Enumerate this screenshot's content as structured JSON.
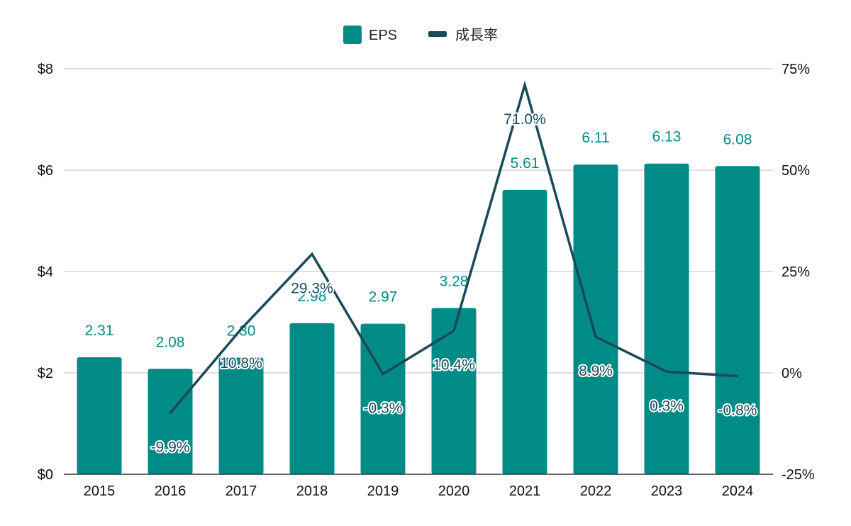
{
  "chart_data": {
    "type": "bar+line",
    "categories": [
      "2015",
      "2016",
      "2017",
      "2018",
      "2019",
      "2020",
      "2021",
      "2022",
      "2023",
      "2024"
    ],
    "series": [
      {
        "name": "EPS",
        "type": "bar",
        "axis": "left",
        "color": "#008b87",
        "values": [
          2.31,
          2.08,
          2.3,
          2.98,
          2.97,
          3.28,
          5.61,
          6.11,
          6.13,
          6.08
        ],
        "labels": [
          "2.31",
          "2.08",
          "2.30",
          "2.98",
          "2.97",
          "3.28",
          "5.61",
          "6.11",
          "6.13",
          "6.08"
        ]
      },
      {
        "name": "成長率",
        "type": "line",
        "axis": "right",
        "color": "#1a4a5a",
        "values": [
          null,
          -9.9,
          10.8,
          29.3,
          -0.3,
          10.4,
          71.0,
          8.9,
          0.3,
          -0.8
        ],
        "labels": [
          null,
          "-9.9%",
          "10.8%",
          "29.3%",
          "-0.3%",
          "10.4%",
          "71.0%",
          "8.9%",
          "0.3%",
          "-0.8%"
        ]
      }
    ],
    "y_left": {
      "range": [
        0,
        8
      ],
      "ticks": [
        0,
        2,
        4,
        6,
        8
      ],
      "tick_labels": [
        "$0",
        "$2",
        "$4",
        "$6",
        "$8"
      ]
    },
    "y_right": {
      "range": [
        -25,
        75
      ],
      "ticks": [
        -25,
        0,
        25,
        50,
        75
      ],
      "tick_labels": [
        "-25%",
        "0%",
        "25%",
        "50%",
        "75%"
      ]
    },
    "grid": true,
    "legend_position": "top-center",
    "gridline_color": "#cccccc"
  }
}
